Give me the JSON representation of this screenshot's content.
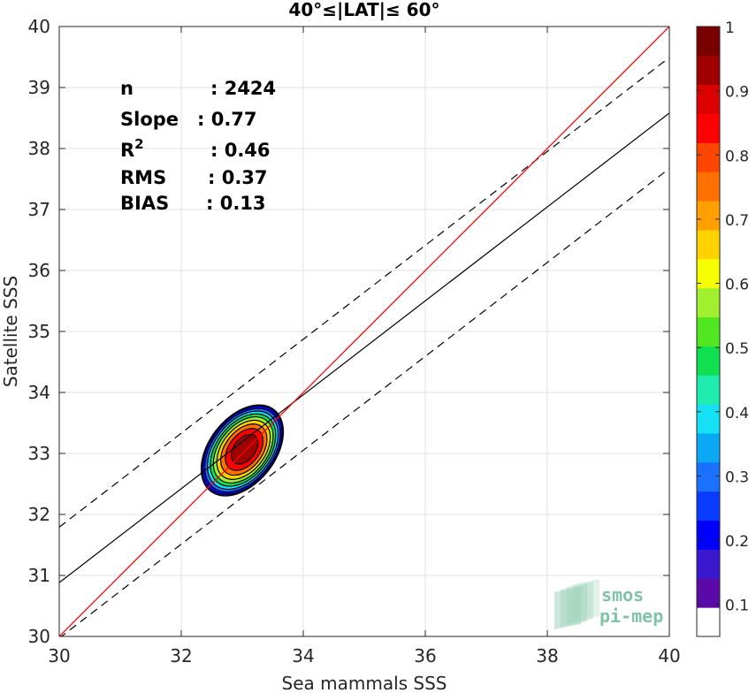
{
  "chart_data": {
    "type": "contour",
    "title": "40°≤|LAT|≤ 60°",
    "xlabel": "Sea mammals SSS",
    "ylabel": "Satellite SSS",
    "xlim": [
      30,
      40
    ],
    "ylim": [
      30,
      40
    ],
    "xticks": [
      "30",
      "32",
      "34",
      "36",
      "38",
      "40"
    ],
    "yticks": [
      "30",
      "31",
      "32",
      "33",
      "34",
      "35",
      "36",
      "37",
      "38",
      "39",
      "40"
    ],
    "grid": true,
    "stats": [
      {
        "label": "n",
        "value": ": 2424"
      },
      {
        "label": "Slope",
        "value": ": 0.77"
      },
      {
        "label": "R",
        "sup": "2",
        "value": ": 0.46"
      },
      {
        "label": "RMS",
        "value": ": 0.37"
      },
      {
        "label": "BIAS",
        "value": ": 0.13"
      }
    ],
    "lines": {
      "identity": {
        "slope": 1,
        "intercept": 0,
        "color": "#ff0000"
      },
      "fit": {
        "slope": 0.77,
        "intercept": 7.7822
      },
      "dashed_offset": 0.91
    },
    "density": {
      "center": [
        33.0,
        33.05
      ],
      "levels": [
        0.05,
        0.1,
        0.2,
        0.3,
        0.4,
        0.5,
        0.6,
        0.7,
        0.8,
        0.9
      ],
      "outer_extent": {
        "x": [
          31.98,
          33.95
        ],
        "y": [
          32.25,
          34.22
        ]
      }
    },
    "colorbar": {
      "ticks": [
        "0.1",
        "0.2",
        "0.3",
        "0.4",
        "0.5",
        "0.6",
        "0.7",
        "0.8",
        "0.9",
        "1"
      ],
      "colors": [
        "#ffffff",
        "#5b0aa8",
        "#3a18d0",
        "#0000ff",
        "#0a3cff",
        "#1a70ff",
        "#0aa8f5",
        "#14e1f5",
        "#20ecb0",
        "#10e050",
        "#50e620",
        "#a0f030",
        "#f5ff00",
        "#ffd200",
        "#ffa000",
        "#ff7000",
        "#ff4600",
        "#ff0000",
        "#dc0000",
        "#a00000",
        "#7a0000"
      ]
    },
    "watermark": {
      "line1": "smos",
      "line2": "pi-mep"
    }
  }
}
